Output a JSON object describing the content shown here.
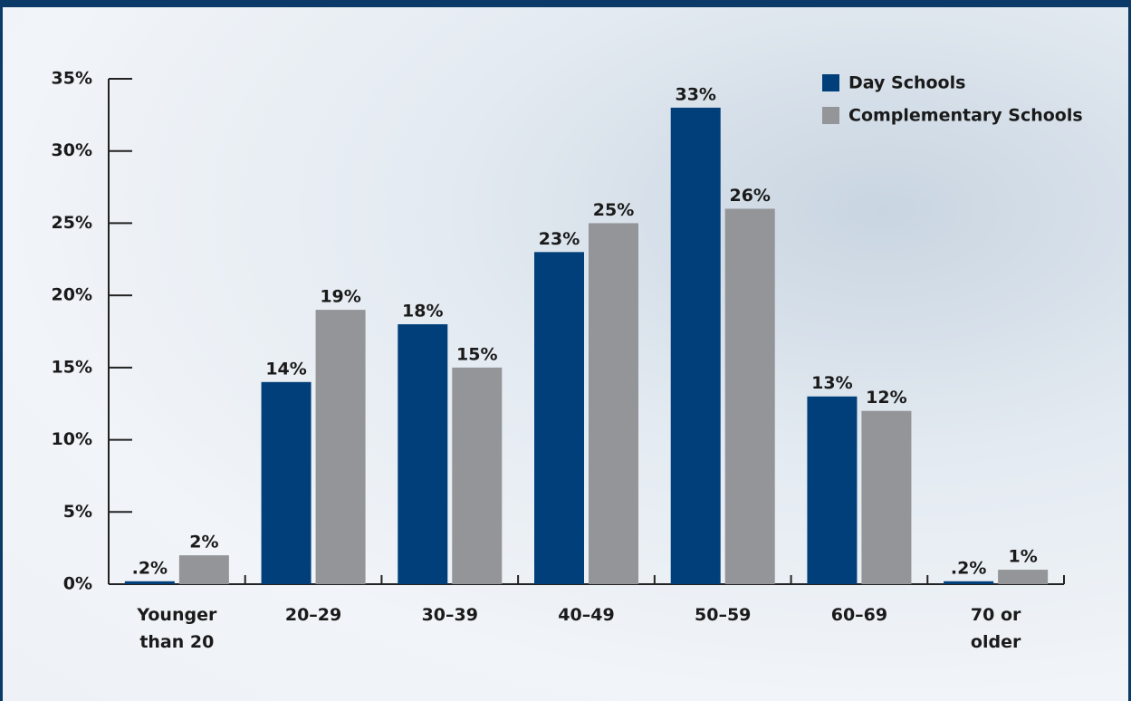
{
  "chart_data": {
    "type": "bar",
    "categories": [
      "Younger than 20",
      "20–29",
      "30–39",
      "40–49",
      "50–59",
      "60–69",
      "70 or older"
    ],
    "series": [
      {
        "name": "Day Schools",
        "color": "#013f7b",
        "values": [
          0.2,
          14,
          18,
          23,
          33,
          13,
          0.2
        ],
        "value_labels": [
          ".2%",
          "14%",
          "18%",
          "23%",
          "33%",
          "13%",
          ".2%"
        ]
      },
      {
        "name": "Complementary Schools",
        "color": "#939598",
        "values": [
          2,
          19,
          15,
          25,
          26,
          12,
          1
        ],
        "value_labels": [
          "2%",
          "19%",
          "15%",
          "25%",
          "26%",
          "12%",
          "1%"
        ]
      }
    ],
    "ylim": [
      0,
      35
    ],
    "yticks": [
      {
        "value": 0,
        "label": "0%"
      },
      {
        "value": 5,
        "label": "5%"
      },
      {
        "value": 10,
        "label": "10%"
      },
      {
        "value": 15,
        "label": "15%"
      },
      {
        "value": 20,
        "label": "20%"
      },
      {
        "value": 25,
        "label": "25%"
      },
      {
        "value": 30,
        "label": "30%"
      },
      {
        "value": 35,
        "label": "35%"
      }
    ],
    "legend": "top-right",
    "grid": false
  }
}
